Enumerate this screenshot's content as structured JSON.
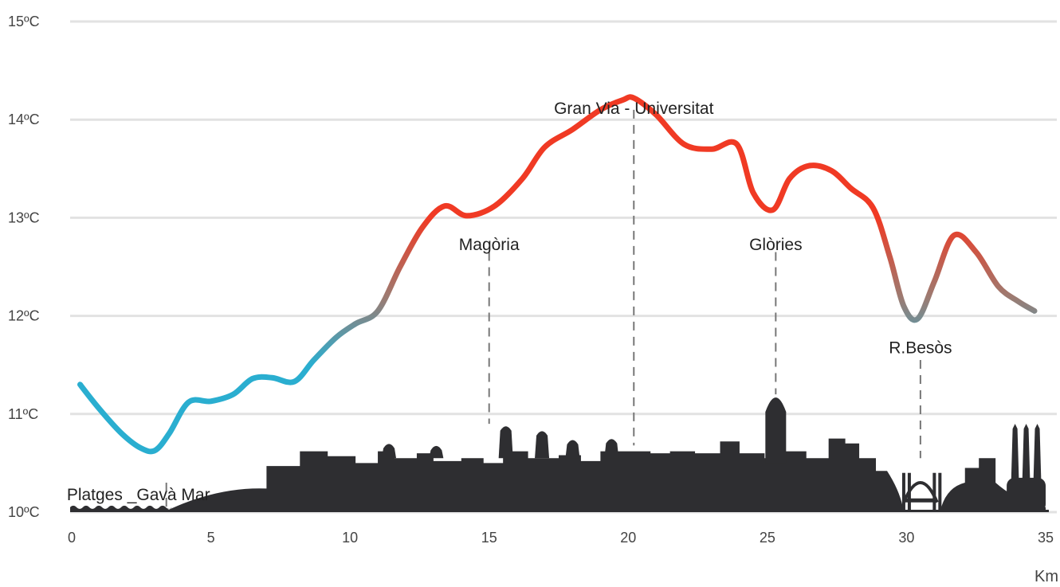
{
  "chart_data": {
    "type": "line",
    "title": "",
    "xlabel": "Km",
    "ylabel": "",
    "xlim": [
      0,
      35
    ],
    "ylim": [
      10,
      15
    ],
    "grid": true,
    "xticks": [
      0,
      5,
      10,
      15,
      20,
      25,
      30,
      35
    ],
    "xtick_labels": [
      "0",
      "5",
      "10",
      "15",
      "20",
      "25",
      "30",
      "35"
    ],
    "yticks": [
      10,
      11,
      12,
      13,
      14,
      15
    ],
    "ytick_labels": [
      "10ºC",
      "11ºC",
      "12ºC",
      "13ºC",
      "14ºC",
      "15ºC"
    ],
    "gradient_colors": {
      "cold": "#2aaed0",
      "mid": "#9e7a70",
      "hot": "#f03a24"
    },
    "skyline_color": "#2e2e31",
    "series": [
      {
        "name": "",
        "x": [
          0.3,
          1.0,
          1.8,
          2.5,
          3.0,
          3.5,
          4.2,
          5.0,
          5.8,
          6.5,
          7.2,
          8.0,
          8.7,
          9.5,
          10.2,
          11.0,
          11.8,
          12.6,
          13.4,
          14.2,
          15.2,
          16.2,
          17.0,
          18.0,
          19.0,
          19.8,
          20.2,
          21.0,
          22.0,
          23.0,
          23.9,
          24.5,
          25.2,
          25.8,
          26.5,
          27.3,
          28.0,
          28.8,
          29.4,
          29.9,
          30.4,
          31.0,
          31.7,
          32.5,
          33.3,
          34.0,
          34.6
        ],
        "y": [
          11.3,
          11.05,
          10.8,
          10.65,
          10.63,
          10.8,
          11.12,
          11.13,
          11.2,
          11.36,
          11.37,
          11.33,
          11.55,
          11.78,
          11.92,
          12.05,
          12.5,
          12.9,
          13.12,
          13.02,
          13.12,
          13.4,
          13.72,
          13.9,
          14.1,
          14.2,
          14.22,
          14.05,
          13.75,
          13.7,
          13.75,
          13.25,
          13.08,
          13.4,
          13.53,
          13.48,
          13.3,
          13.1,
          12.6,
          12.1,
          11.97,
          12.35,
          12.82,
          12.65,
          12.3,
          12.15,
          12.05
        ]
      }
    ],
    "annotations": [
      {
        "text": "Platges _Gavà Mar",
        "x": 3.4,
        "y": 10.12
      },
      {
        "text": "Magòria",
        "x": 15.0,
        "y": 12.67
      },
      {
        "text": "Gran Via - Universitat",
        "x": 20.2,
        "y": 14.06
      },
      {
        "text": "Glòries",
        "x": 25.3,
        "y": 12.67
      },
      {
        "text": "R.Besòs",
        "x": 30.5,
        "y": 11.62
      }
    ]
  }
}
